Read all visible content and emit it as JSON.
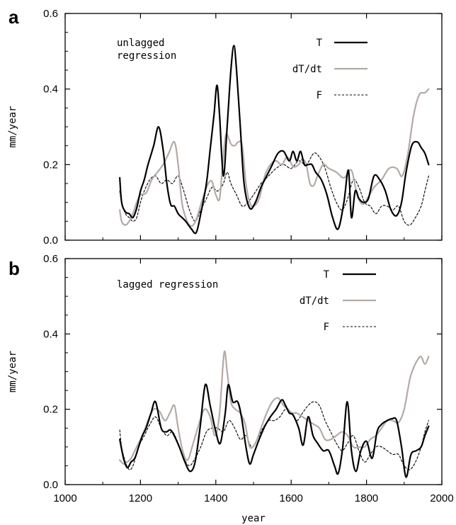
{
  "chart_data": [
    {
      "type": "line",
      "panel": "a",
      "annotation": [
        "unlagged",
        "regression"
      ],
      "xlabel": "",
      "ylabel": "mm/year",
      "xlim": [
        1000,
        2000
      ],
      "ylim": [
        0.0,
        0.6
      ],
      "x_ticks": [
        1000,
        1200,
        1400,
        1600,
        1800,
        2000
      ],
      "y_tick_labels": [
        "0.0",
        "0.2",
        "0.4",
        "0.6"
      ],
      "y_ticks": [
        0.0,
        0.2,
        0.4,
        0.6
      ],
      "legend_placement": "top-right",
      "series": [
        {
          "name": "T",
          "color": "#000000",
          "style": "solid",
          "x": [
            1145,
            1150,
            1160,
            1170,
            1180,
            1190,
            1200,
            1210,
            1220,
            1235,
            1248,
            1260,
            1270,
            1280,
            1290,
            1300,
            1310,
            1320,
            1335,
            1348,
            1360,
            1375,
            1385,
            1395,
            1403,
            1410,
            1420,
            1430,
            1440,
            1448,
            1455,
            1465,
            1475,
            1490,
            1505,
            1520,
            1535,
            1550,
            1565,
            1580,
            1595,
            1605,
            1615,
            1625,
            1635,
            1645,
            1655,
            1665,
            1680,
            1695,
            1710,
            1725,
            1740,
            1752,
            1760,
            1770,
            1780,
            1792,
            1805,
            1820,
            1835,
            1850,
            1865,
            1880,
            1893,
            1905,
            1920,
            1935,
            1945,
            1955,
            1965
          ],
          "y": [
            0.165,
            0.1,
            0.075,
            0.07,
            0.06,
            0.085,
            0.13,
            0.16,
            0.2,
            0.25,
            0.3,
            0.24,
            0.15,
            0.095,
            0.09,
            0.07,
            0.06,
            0.05,
            0.03,
            0.02,
            0.07,
            0.15,
            0.24,
            0.33,
            0.41,
            0.33,
            0.17,
            0.3,
            0.45,
            0.515,
            0.45,
            0.3,
            0.15,
            0.085,
            0.1,
            0.14,
            0.17,
            0.2,
            0.23,
            0.235,
            0.21,
            0.235,
            0.21,
            0.235,
            0.2,
            0.2,
            0.2,
            0.18,
            0.16,
            0.12,
            0.06,
            0.03,
            0.1,
            0.185,
            0.06,
            0.13,
            0.11,
            0.1,
            0.11,
            0.17,
            0.16,
            0.13,
            0.08,
            0.065,
            0.1,
            0.18,
            0.25,
            0.26,
            0.245,
            0.23,
            0.2
          ]
        },
        {
          "name": "dT/dt",
          "color": "#b3aaa6",
          "style": "solid",
          "x": [
            1145,
            1150,
            1160,
            1170,
            1180,
            1190,
            1200,
            1215,
            1230,
            1245,
            1260,
            1275,
            1290,
            1300,
            1310,
            1320,
            1330,
            1340,
            1350,
            1365,
            1380,
            1390,
            1400,
            1410,
            1418,
            1425,
            1430,
            1440,
            1450,
            1460,
            1470,
            1480,
            1490,
            1500,
            1515,
            1530,
            1545,
            1560,
            1575,
            1590,
            1605,
            1620,
            1630,
            1640,
            1650,
            1660,
            1670,
            1685,
            1700,
            1720,
            1740,
            1760,
            1775,
            1790,
            1805,
            1820,
            1840,
            1860,
            1880,
            1895,
            1910,
            1925,
            1940,
            1955,
            1965
          ],
          "y": [
            0.08,
            0.05,
            0.04,
            0.05,
            0.07,
            0.1,
            0.12,
            0.125,
            0.16,
            0.18,
            0.2,
            0.23,
            0.26,
            0.2,
            0.1,
            0.06,
            0.04,
            0.04,
            0.06,
            0.11,
            0.15,
            0.155,
            0.12,
            0.11,
            0.2,
            0.27,
            0.28,
            0.255,
            0.25,
            0.26,
            0.25,
            0.15,
            0.1,
            0.09,
            0.11,
            0.17,
            0.2,
            0.21,
            0.2,
            0.22,
            0.195,
            0.2,
            0.215,
            0.2,
            0.15,
            0.145,
            0.17,
            0.2,
            0.19,
            0.18,
            0.165,
            0.185,
            0.12,
            0.095,
            0.115,
            0.14,
            0.16,
            0.19,
            0.19,
            0.17,
            0.23,
            0.33,
            0.385,
            0.39,
            0.4
          ]
        },
        {
          "name": "F",
          "color": "#000000",
          "style": "dashed",
          "x": [
            1145,
            1150,
            1160,
            1170,
            1180,
            1190,
            1200,
            1210,
            1225,
            1240,
            1255,
            1270,
            1285,
            1300,
            1315,
            1330,
            1345,
            1360,
            1375,
            1390,
            1405,
            1420,
            1430,
            1440,
            1455,
            1470,
            1485,
            1500,
            1520,
            1540,
            1560,
            1580,
            1600,
            1620,
            1640,
            1660,
            1675,
            1690,
            1705,
            1720,
            1735,
            1750,
            1765,
            1780,
            1795,
            1810,
            1825,
            1840,
            1855,
            1870,
            1885,
            1900,
            1915,
            1930,
            1945,
            1955,
            1965
          ],
          "y": [
            0.13,
            0.1,
            0.07,
            0.06,
            0.05,
            0.06,
            0.1,
            0.13,
            0.16,
            0.17,
            0.15,
            0.16,
            0.15,
            0.17,
            0.13,
            0.08,
            0.05,
            0.08,
            0.11,
            0.14,
            0.13,
            0.15,
            0.18,
            0.15,
            0.12,
            0.09,
            0.1,
            0.12,
            0.15,
            0.17,
            0.19,
            0.2,
            0.19,
            0.21,
            0.2,
            0.23,
            0.22,
            0.19,
            0.14,
            0.1,
            0.08,
            0.11,
            0.16,
            0.14,
            0.1,
            0.09,
            0.07,
            0.09,
            0.09,
            0.08,
            0.09,
            0.05,
            0.04,
            0.06,
            0.09,
            0.13,
            0.17
          ]
        }
      ]
    },
    {
      "type": "line",
      "panel": "b",
      "annotation": [
        "lagged regression"
      ],
      "xlabel": "year",
      "ylabel": "mm/year",
      "xlim": [
        1000,
        2000
      ],
      "ylim": [
        0.0,
        0.6
      ],
      "x_ticks": [
        1000,
        1200,
        1400,
        1600,
        1800,
        2000
      ],
      "y_tick_labels": [
        "0.0",
        "0.2",
        "0.4",
        "0.6"
      ],
      "y_ticks": [
        0.0,
        0.2,
        0.4,
        0.6
      ],
      "legend_placement": "top-right",
      "series": [
        {
          "name": "T",
          "color": "#000000",
          "style": "solid",
          "x": [
            1145,
            1155,
            1165,
            1175,
            1185,
            1195,
            1205,
            1215,
            1228,
            1240,
            1255,
            1268,
            1280,
            1292,
            1305,
            1318,
            1332,
            1345,
            1358,
            1372,
            1385,
            1400,
            1412,
            1425,
            1433,
            1445,
            1458,
            1468,
            1480,
            1490,
            1500,
            1515,
            1530,
            1545,
            1560,
            1575,
            1585,
            1595,
            1605,
            1620,
            1632,
            1645,
            1658,
            1670,
            1685,
            1700,
            1715,
            1725,
            1737,
            1749,
            1760,
            1772,
            1785,
            1800,
            1815,
            1828,
            1840,
            1855,
            1868,
            1880,
            1893,
            1905,
            1918,
            1932,
            1945,
            1955,
            1965
          ],
          "y": [
            0.12,
            0.07,
            0.045,
            0.06,
            0.07,
            0.1,
            0.13,
            0.15,
            0.19,
            0.22,
            0.15,
            0.14,
            0.145,
            0.125,
            0.095,
            0.06,
            0.035,
            0.06,
            0.15,
            0.265,
            0.21,
            0.14,
            0.11,
            0.19,
            0.265,
            0.22,
            0.22,
            0.18,
            0.1,
            0.055,
            0.08,
            0.12,
            0.155,
            0.18,
            0.2,
            0.225,
            0.21,
            0.19,
            0.185,
            0.15,
            0.105,
            0.18,
            0.13,
            0.11,
            0.09,
            0.09,
            0.05,
            0.03,
            0.1,
            0.22,
            0.09,
            0.035,
            0.09,
            0.115,
            0.07,
            0.14,
            0.16,
            0.17,
            0.175,
            0.17,
            0.1,
            0.02,
            0.08,
            0.09,
            0.1,
            0.13,
            0.155
          ]
        },
        {
          "name": "dT/dt",
          "color": "#b3aaa6",
          "style": "solid",
          "x": [
            1145,
            1155,
            1165,
            1175,
            1190,
            1205,
            1220,
            1235,
            1250,
            1265,
            1278,
            1290,
            1300,
            1312,
            1325,
            1340,
            1355,
            1370,
            1385,
            1398,
            1410,
            1422,
            1430,
            1440,
            1452,
            1465,
            1478,
            1490,
            1505,
            1520,
            1535,
            1550,
            1565,
            1580,
            1592,
            1602,
            1615,
            1630,
            1645,
            1660,
            1675,
            1690,
            1705,
            1720,
            1735,
            1750,
            1765,
            1780,
            1795,
            1810,
            1825,
            1840,
            1855,
            1870,
            1885,
            1900,
            1915,
            1925,
            1935,
            1945,
            1955,
            1965
          ],
          "y": [
            0.065,
            0.055,
            0.06,
            0.07,
            0.1,
            0.13,
            0.17,
            0.2,
            0.195,
            0.17,
            0.19,
            0.21,
            0.15,
            0.09,
            0.065,
            0.11,
            0.16,
            0.2,
            0.18,
            0.13,
            0.19,
            0.35,
            0.3,
            0.22,
            0.2,
            0.19,
            0.16,
            0.1,
            0.11,
            0.15,
            0.19,
            0.22,
            0.23,
            0.21,
            0.2,
            0.19,
            0.19,
            0.18,
            0.17,
            0.16,
            0.15,
            0.12,
            0.12,
            0.13,
            0.14,
            0.13,
            0.1,
            0.1,
            0.1,
            0.12,
            0.13,
            0.15,
            0.17,
            0.17,
            0.165,
            0.2,
            0.28,
            0.31,
            0.33,
            0.34,
            0.32,
            0.34
          ]
        },
        {
          "name": "F",
          "color": "#000000",
          "style": "dashed",
          "x": [
            1145,
            1150,
            1160,
            1170,
            1180,
            1195,
            1210,
            1225,
            1240,
            1255,
            1270,
            1285,
            1300,
            1315,
            1330,
            1345,
            1360,
            1375,
            1390,
            1405,
            1420,
            1435,
            1450,
            1465,
            1480,
            1495,
            1510,
            1525,
            1540,
            1555,
            1570,
            1585,
            1600,
            1615,
            1630,
            1645,
            1660,
            1675,
            1690,
            1705,
            1720,
            1735,
            1750,
            1765,
            1780,
            1795,
            1810,
            1825,
            1840,
            1855,
            1870,
            1885,
            1900,
            1915,
            1930,
            1945,
            1955,
            1965
          ],
          "y": [
            0.145,
            0.1,
            0.06,
            0.04,
            0.05,
            0.1,
            0.13,
            0.16,
            0.18,
            0.15,
            0.13,
            0.14,
            0.11,
            0.07,
            0.05,
            0.07,
            0.1,
            0.14,
            0.15,
            0.15,
            0.14,
            0.17,
            0.15,
            0.12,
            0.13,
            0.1,
            0.12,
            0.15,
            0.17,
            0.17,
            0.18,
            0.2,
            0.19,
            0.17,
            0.19,
            0.21,
            0.22,
            0.21,
            0.17,
            0.14,
            0.11,
            0.09,
            0.11,
            0.13,
            0.09,
            0.06,
            0.08,
            0.1,
            0.1,
            0.09,
            0.08,
            0.08,
            0.05,
            0.04,
            0.06,
            0.1,
            0.14,
            0.17
          ]
        }
      ]
    }
  ]
}
